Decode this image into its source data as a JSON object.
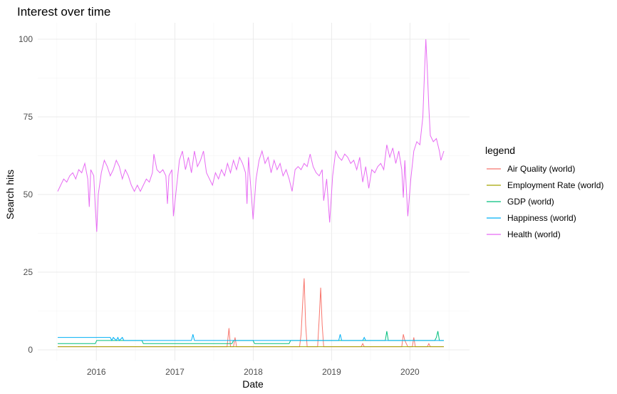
{
  "chart_data": {
    "type": "line",
    "title": "Interest over time",
    "xlabel": "Date",
    "ylabel": "Search hits",
    "x_tick_labels": [
      "2016",
      "2017",
      "2018",
      "2019",
      "2020"
    ],
    "x_ticks": [
      "2016-01-01",
      "2017-01-01",
      "2018-01-01",
      "2019-01-01",
      "2020-01-01"
    ],
    "xlim": [
      "2015-07-05",
      "2020-06-07"
    ],
    "y_tick_labels": [
      "0",
      "25",
      "50",
      "75",
      "100"
    ],
    "y_ticks": [
      0,
      25,
      50,
      75,
      100
    ],
    "ylim": [
      0,
      100
    ],
    "grid": true,
    "legend_title": "legend",
    "legend_position": "right",
    "series": [
      {
        "name": "Air Quality (world)",
        "color": "#F8766D",
        "points": [
          [
            "2015-07-05",
            1
          ],
          [
            "2017-09-01",
            1
          ],
          [
            "2017-09-10",
            7
          ],
          [
            "2017-09-17",
            1
          ],
          [
            "2017-10-01",
            1
          ],
          [
            "2017-10-08",
            4
          ],
          [
            "2017-10-15",
            1
          ],
          [
            "2018-08-05",
            1
          ],
          [
            "2018-08-12",
            5
          ],
          [
            "2018-08-19",
            15
          ],
          [
            "2018-08-26",
            23
          ],
          [
            "2018-09-02",
            8
          ],
          [
            "2018-09-09",
            1
          ],
          [
            "2018-10-28",
            1
          ],
          [
            "2018-11-04",
            10
          ],
          [
            "2018-11-11",
            20
          ],
          [
            "2018-11-18",
            8
          ],
          [
            "2018-11-25",
            1
          ],
          [
            "2019-05-19",
            1
          ],
          [
            "2019-05-26",
            2
          ],
          [
            "2019-06-02",
            1
          ],
          [
            "2019-11-24",
            1
          ],
          [
            "2019-12-01",
            5
          ],
          [
            "2019-12-08",
            3
          ],
          [
            "2019-12-15",
            2
          ],
          [
            "2019-12-22",
            1
          ],
          [
            "2020-01-12",
            1
          ],
          [
            "2020-01-19",
            4
          ],
          [
            "2020-01-26",
            1
          ],
          [
            "2020-03-22",
            1
          ],
          [
            "2020-03-29",
            2
          ],
          [
            "2020-04-05",
            1
          ],
          [
            "2020-06-07",
            1
          ]
        ]
      },
      {
        "name": "Employment Rate (world)",
        "color": "#A3A500",
        "points": [
          [
            "2015-07-05",
            1
          ],
          [
            "2020-06-07",
            1
          ]
        ]
      },
      {
        "name": "GDP (world)",
        "color": "#00BF7D",
        "points": [
          [
            "2015-07-05",
            2
          ],
          [
            "2015-12-27",
            2
          ],
          [
            "2016-01-03",
            3
          ],
          [
            "2016-07-31",
            3
          ],
          [
            "2016-08-07",
            2
          ],
          [
            "2017-09-24",
            2
          ],
          [
            "2017-10-01",
            3
          ],
          [
            "2017-12-31",
            3
          ],
          [
            "2018-01-07",
            2
          ],
          [
            "2018-06-17",
            2
          ],
          [
            "2018-06-24",
            3
          ],
          [
            "2019-09-08",
            3
          ],
          [
            "2019-09-15",
            6
          ],
          [
            "2019-09-22",
            3
          ],
          [
            "2020-04-26",
            3
          ],
          [
            "2020-05-03",
            4
          ],
          [
            "2020-05-10",
            6
          ],
          [
            "2020-05-17",
            3
          ],
          [
            "2020-06-07",
            3
          ]
        ]
      },
      {
        "name": "Happiness (world)",
        "color": "#00B0F6",
        "points": [
          [
            "2015-07-05",
            4
          ],
          [
            "2016-03-06",
            4
          ],
          [
            "2016-03-13",
            3
          ],
          [
            "2016-03-20",
            4
          ],
          [
            "2016-04-03",
            3
          ],
          [
            "2016-04-10",
            4
          ],
          [
            "2016-04-17",
            3
          ],
          [
            "2016-05-01",
            4
          ],
          [
            "2016-05-08",
            3
          ],
          [
            "2017-03-19",
            3
          ],
          [
            "2017-03-26",
            5
          ],
          [
            "2017-04-02",
            3
          ],
          [
            "2019-02-03",
            3
          ],
          [
            "2019-02-10",
            5
          ],
          [
            "2019-02-17",
            3
          ],
          [
            "2019-05-26",
            3
          ],
          [
            "2019-06-02",
            4
          ],
          [
            "2019-06-09",
            3
          ],
          [
            "2020-06-07",
            3
          ]
        ]
      },
      {
        "name": "Health (world)",
        "color": "#E76BF3",
        "points": [
          [
            "2015-07-05",
            51
          ],
          [
            "2015-07-19",
            53
          ],
          [
            "2015-08-02",
            55
          ],
          [
            "2015-08-16",
            54
          ],
          [
            "2015-08-30",
            56
          ],
          [
            "2015-09-13",
            57
          ],
          [
            "2015-09-27",
            55
          ],
          [
            "2015-10-11",
            58
          ],
          [
            "2015-10-25",
            57
          ],
          [
            "2015-11-08",
            60
          ],
          [
            "2015-11-22",
            55
          ],
          [
            "2015-11-29",
            46
          ],
          [
            "2015-12-06",
            58
          ],
          [
            "2015-12-20",
            56
          ],
          [
            "2015-12-27",
            46
          ],
          [
            "2016-01-03",
            38
          ],
          [
            "2016-01-10",
            50
          ],
          [
            "2016-01-24",
            57
          ],
          [
            "2016-02-07",
            61
          ],
          [
            "2016-02-21",
            59
          ],
          [
            "2016-03-06",
            56
          ],
          [
            "2016-03-20",
            58
          ],
          [
            "2016-04-03",
            61
          ],
          [
            "2016-04-17",
            59
          ],
          [
            "2016-05-01",
            55
          ],
          [
            "2016-05-15",
            58
          ],
          [
            "2016-05-29",
            56
          ],
          [
            "2016-06-12",
            53
          ],
          [
            "2016-06-26",
            51
          ],
          [
            "2016-07-10",
            53
          ],
          [
            "2016-07-24",
            51
          ],
          [
            "2016-08-07",
            53
          ],
          [
            "2016-08-21",
            55
          ],
          [
            "2016-09-04",
            54
          ],
          [
            "2016-09-18",
            57
          ],
          [
            "2016-09-25",
            63
          ],
          [
            "2016-10-09",
            58
          ],
          [
            "2016-10-23",
            57
          ],
          [
            "2016-11-06",
            58
          ],
          [
            "2016-11-20",
            56
          ],
          [
            "2016-11-27",
            47
          ],
          [
            "2016-12-04",
            56
          ],
          [
            "2016-12-18",
            58
          ],
          [
            "2016-12-25",
            43
          ],
          [
            "2017-01-08",
            52
          ],
          [
            "2017-01-22",
            61
          ],
          [
            "2017-02-05",
            64
          ],
          [
            "2017-02-19",
            58
          ],
          [
            "2017-03-05",
            62
          ],
          [
            "2017-03-19",
            57
          ],
          [
            "2017-04-02",
            64
          ],
          [
            "2017-04-16",
            59
          ],
          [
            "2017-04-30",
            61
          ],
          [
            "2017-05-14",
            64
          ],
          [
            "2017-05-28",
            57
          ],
          [
            "2017-06-11",
            55
          ],
          [
            "2017-06-25",
            53
          ],
          [
            "2017-07-09",
            57
          ],
          [
            "2017-07-23",
            55
          ],
          [
            "2017-08-06",
            58
          ],
          [
            "2017-08-20",
            56
          ],
          [
            "2017-09-03",
            60
          ],
          [
            "2017-09-17",
            57
          ],
          [
            "2017-10-01",
            61
          ],
          [
            "2017-10-15",
            58
          ],
          [
            "2017-10-29",
            62
          ],
          [
            "2017-11-12",
            60
          ],
          [
            "2017-11-26",
            57
          ],
          [
            "2017-12-03",
            47
          ],
          [
            "2017-12-10",
            62
          ],
          [
            "2017-12-24",
            49
          ],
          [
            "2017-12-31",
            42
          ],
          [
            "2018-01-14",
            55
          ],
          [
            "2018-01-28",
            61
          ],
          [
            "2018-02-11",
            64
          ],
          [
            "2018-02-25",
            60
          ],
          [
            "2018-03-11",
            62
          ],
          [
            "2018-03-25",
            57
          ],
          [
            "2018-04-08",
            61
          ],
          [
            "2018-04-22",
            58
          ],
          [
            "2018-05-06",
            60
          ],
          [
            "2018-05-20",
            56
          ],
          [
            "2018-06-03",
            58
          ],
          [
            "2018-06-17",
            55
          ],
          [
            "2018-07-01",
            51
          ],
          [
            "2018-07-15",
            58
          ],
          [
            "2018-07-29",
            59
          ],
          [
            "2018-08-12",
            58
          ],
          [
            "2018-08-26",
            60
          ],
          [
            "2018-09-09",
            59
          ],
          [
            "2018-09-23",
            63
          ],
          [
            "2018-10-07",
            59
          ],
          [
            "2018-10-21",
            57
          ],
          [
            "2018-11-04",
            56
          ],
          [
            "2018-11-18",
            58
          ],
          [
            "2018-11-25",
            48
          ],
          [
            "2018-12-09",
            55
          ],
          [
            "2018-12-23",
            41
          ],
          [
            "2019-01-06",
            56
          ],
          [
            "2019-01-20",
            64
          ],
          [
            "2019-02-03",
            62
          ],
          [
            "2019-02-17",
            61
          ],
          [
            "2019-03-03",
            63
          ],
          [
            "2019-03-17",
            62
          ],
          [
            "2019-03-31",
            60
          ],
          [
            "2019-04-14",
            61
          ],
          [
            "2019-04-28",
            58
          ],
          [
            "2019-05-12",
            62
          ],
          [
            "2019-05-26",
            54
          ],
          [
            "2019-06-09",
            59
          ],
          [
            "2019-06-23",
            52
          ],
          [
            "2019-07-07",
            58
          ],
          [
            "2019-07-21",
            57
          ],
          [
            "2019-08-04",
            59
          ],
          [
            "2019-08-18",
            60
          ],
          [
            "2019-09-01",
            58
          ],
          [
            "2019-09-15",
            66
          ],
          [
            "2019-09-29",
            62
          ],
          [
            "2019-10-13",
            65
          ],
          [
            "2019-10-27",
            60
          ],
          [
            "2019-11-10",
            64
          ],
          [
            "2019-11-24",
            58
          ],
          [
            "2019-12-01",
            49
          ],
          [
            "2019-12-08",
            61
          ],
          [
            "2019-12-22",
            43
          ],
          [
            "2020-01-05",
            55
          ],
          [
            "2020-01-19",
            64
          ],
          [
            "2020-02-02",
            67
          ],
          [
            "2020-02-16",
            66
          ],
          [
            "2020-03-01",
            75
          ],
          [
            "2020-03-08",
            88
          ],
          [
            "2020-03-15",
            100
          ],
          [
            "2020-03-22",
            90
          ],
          [
            "2020-03-29",
            78
          ],
          [
            "2020-04-05",
            69
          ],
          [
            "2020-04-19",
            67
          ],
          [
            "2020-05-03",
            68
          ],
          [
            "2020-05-17",
            64
          ],
          [
            "2020-05-24",
            61
          ],
          [
            "2020-06-07",
            64
          ]
        ]
      }
    ]
  }
}
